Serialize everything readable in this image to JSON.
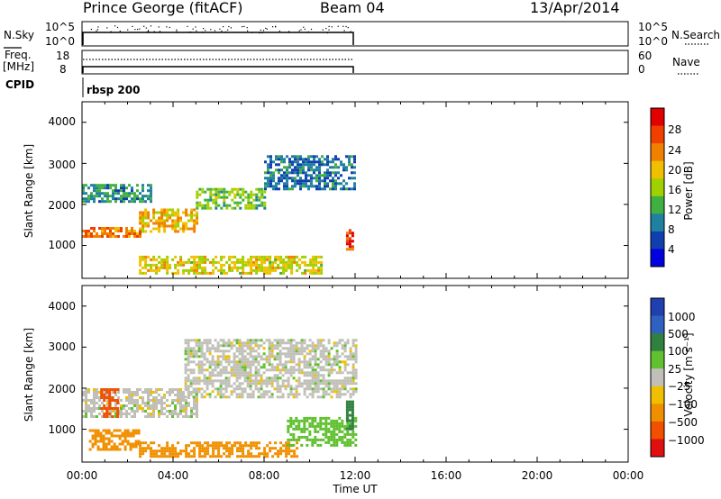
{
  "header": {
    "station": "Prince George (fitACF)",
    "beam": "Beam 04",
    "date": "13/Apr/2014"
  },
  "summary_panels": {
    "nsky_label": "N.Sky",
    "nsky_ticks": [
      "10^5",
      "10^0"
    ],
    "nsearch_label": "N.Search",
    "nsearch_ticks": [
      "10^5",
      "10^0"
    ],
    "freq_label_1": "Freq.",
    "freq_label_2": "[MHz]",
    "freq_ticks": [
      "18",
      "8"
    ],
    "nave_label": "Nave",
    "nave_ticks": [
      "60",
      "0"
    ],
    "cpid_label": "CPID",
    "cpid_value": "rbsp 200"
  },
  "axes": {
    "x_ticks": [
      "00:00",
      "04:00",
      "08:00",
      "12:00",
      "16:00",
      "20:00",
      "00:00"
    ],
    "x_label": "Time UT",
    "y_ticks": [
      "4000",
      "3000",
      "2000",
      "1000"
    ],
    "y_label_power": "Slant Range [km]",
    "y_label_velocity": "Slant Range [km]"
  },
  "power_scale": {
    "label": "Power [dB]",
    "ticks": [
      "28",
      "24",
      "20",
      "16",
      "12",
      "8",
      "4"
    ],
    "colors": [
      "#e00000",
      "#f04000",
      "#f08000",
      "#f0c000",
      "#a0d000",
      "#40b040",
      "#2080a0",
      "#1040b0",
      "#0000e0"
    ]
  },
  "velocity_scale": {
    "label": "Velocity [m s⁻¹]",
    "ticks": [
      "1000",
      "500",
      "100",
      "25",
      "−25",
      "−100",
      "−500",
      "−1000"
    ],
    "colors": [
      "#2040b0",
      "#3060c0",
      "#308040",
      "#60c030",
      "#c0c0b8",
      "#f0c000",
      "#f09000",
      "#f05000",
      "#e01010"
    ]
  },
  "chart_data": [
    {
      "type": "heatmap",
      "name_hint": "power panel",
      "x_range_hours": [
        0,
        24
      ],
      "ylim": [
        200,
        4500
      ],
      "yticks": [
        1000,
        2000,
        3000,
        4000
      ],
      "data_extent_hours": [
        0,
        12
      ],
      "bands": [
        {
          "t0": 0.0,
          "t1": 2.5,
          "r0": 1250,
          "r1": 1450,
          "value": 24
        },
        {
          "t0": 2.5,
          "t1": 5.0,
          "r0": 1350,
          "r1": 1900,
          "value": 20
        },
        {
          "t0": 5.0,
          "t1": 8.0,
          "r0": 1900,
          "r1": 2400,
          "value": 14
        },
        {
          "t0": 8.0,
          "t1": 12.0,
          "r0": 2400,
          "r1": 3200,
          "value": 8
        },
        {
          "t0": 0.0,
          "t1": 3.0,
          "r0": 2100,
          "r1": 2500,
          "value": 10
        },
        {
          "t0": 2.5,
          "t1": 10.5,
          "r0": 350,
          "r1": 750,
          "value": 18
        },
        {
          "t0": 11.6,
          "t1": 11.9,
          "r0": 900,
          "r1": 1400,
          "value": 26
        }
      ]
    },
    {
      "type": "heatmap",
      "name_hint": "velocity panel",
      "x_range_hours": [
        0,
        24
      ],
      "ylim": [
        200,
        4500
      ],
      "yticks": [
        1000,
        2000,
        3000,
        4000
      ],
      "data_extent_hours": [
        0,
        12
      ],
      "bands": [
        {
          "t0": 0.0,
          "t1": 5.0,
          "r0": 1300,
          "r1": 2000,
          "value": 0
        },
        {
          "t0": 4.5,
          "t1": 12.0,
          "r0": 1800,
          "r1": 3200,
          "value": 0
        },
        {
          "t0": 0.8,
          "t1": 1.6,
          "r0": 1300,
          "r1": 2000,
          "value": -600
        },
        {
          "t0": 0.3,
          "t1": 2.5,
          "r0": 500,
          "r1": 1000,
          "value": -300
        },
        {
          "t0": 2.5,
          "t1": 9.5,
          "r0": 350,
          "r1": 700,
          "value": -150
        },
        {
          "t0": 9.0,
          "t1": 12.0,
          "r0": 600,
          "r1": 1300,
          "value": 60
        },
        {
          "t0": 11.6,
          "t1": 11.9,
          "r0": 1000,
          "r1": 1700,
          "value": 400
        }
      ]
    }
  ]
}
